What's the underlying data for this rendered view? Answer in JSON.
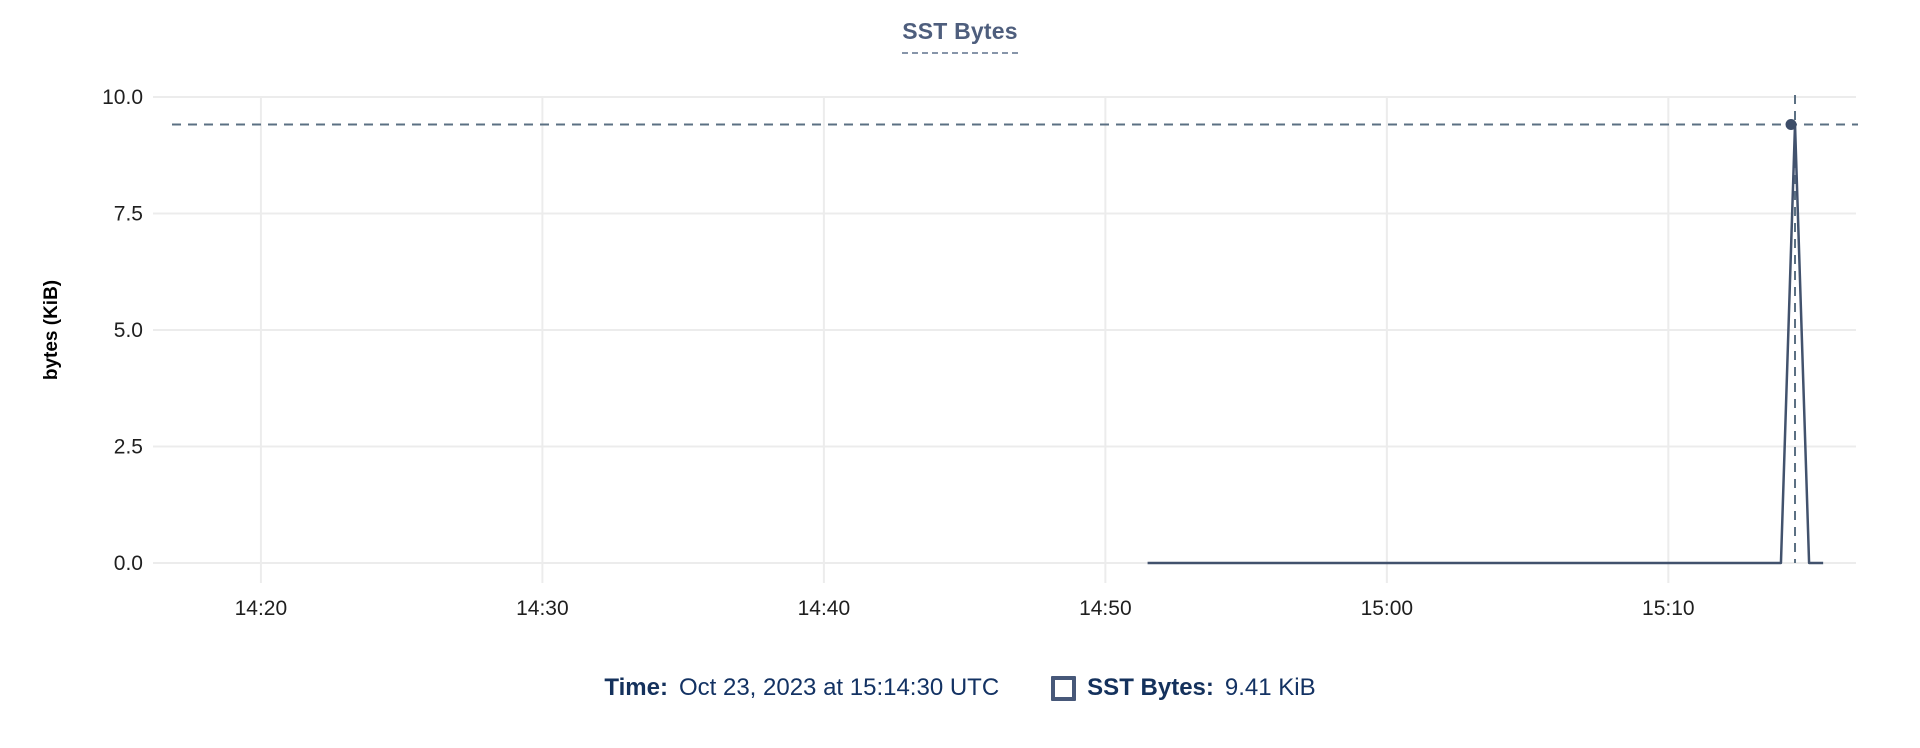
{
  "title": "SST Bytes",
  "chart_data": {
    "type": "line",
    "title": "SST Bytes",
    "xlabel": "",
    "ylabel": "bytes (KiB)",
    "ylim": [
      0,
      10
    ],
    "yticks": [
      0.0,
      2.5,
      5.0,
      7.5,
      10.0
    ],
    "ytick_labels": [
      "0.0",
      "2.5",
      "5.0",
      "7.5",
      "10.0"
    ],
    "xticks": [
      "14:20",
      "14:30",
      "14:40",
      "14:50",
      "15:00",
      "15:10"
    ],
    "x_domain": [
      "14:16:10",
      "15:16:40"
    ],
    "grid": true,
    "legend_position": "bottom",
    "series": [
      {
        "name": "SST Bytes",
        "points": [
          {
            "t": "14:51:30",
            "v": 0
          },
          {
            "t": "15:14:00",
            "v": 0
          },
          {
            "t": "15:14:30",
            "v": 9.41
          },
          {
            "t": "15:15:00",
            "v": 0
          },
          {
            "t": "15:15:30",
            "v": 0
          }
        ]
      }
    ],
    "highlight": {
      "t": "15:14:30",
      "v": 9.41,
      "crosshair": true
    }
  },
  "tooltip": {
    "time_label": "Time:",
    "time_value": "Oct 23, 2023 at 15:14:30 UTC",
    "series_label": "SST Bytes:",
    "series_value": "9.41 KiB"
  },
  "colors": {
    "series_line": "#42526d",
    "point_marker": "#3d4d68",
    "crosshair": "#5b7083",
    "gridline": "#ececec",
    "tick_text": "#1f1f1f",
    "axis_label_text": "#000000",
    "title_text": "#4e5e7d",
    "legend_text": "#123160"
  }
}
